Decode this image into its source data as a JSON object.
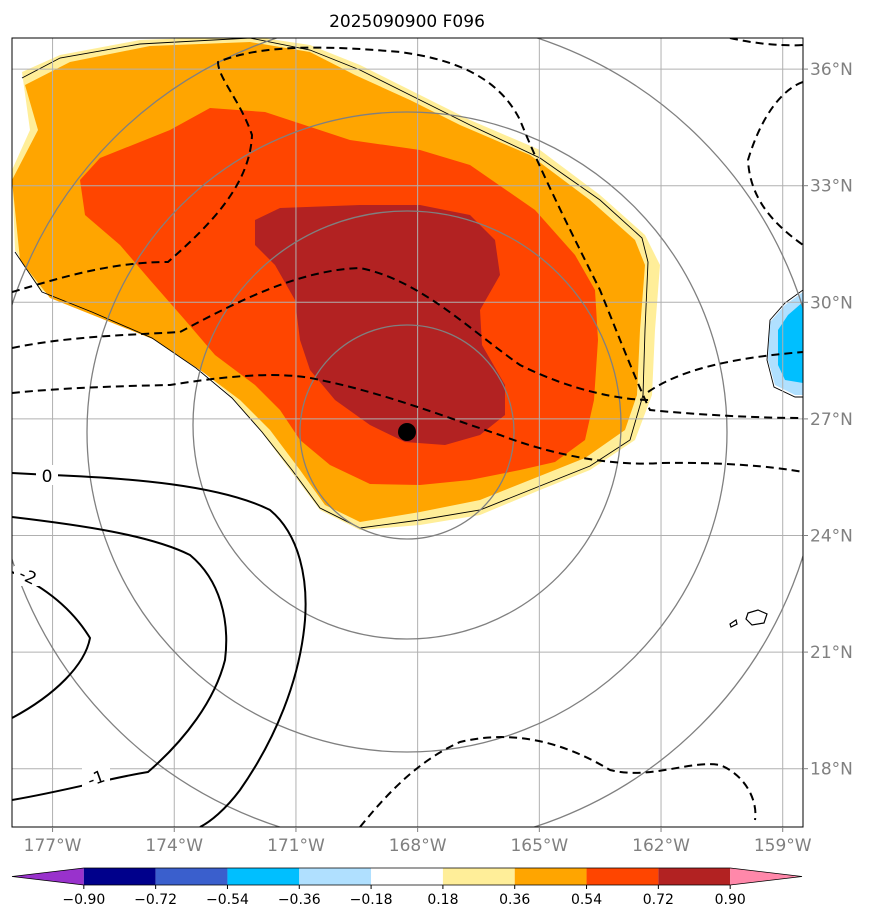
{
  "title": "2025090900 F096",
  "map": {
    "lon_range": [
      -178,
      -158.5
    ],
    "lat_range": [
      16.5,
      36.8
    ],
    "lon_ticks": [
      {
        "value": -177,
        "label": "177°W"
      },
      {
        "value": -174,
        "label": "174°W"
      },
      {
        "value": -171,
        "label": "171°W"
      },
      {
        "value": -168,
        "label": "168°W"
      },
      {
        "value": -165,
        "label": "165°W"
      },
      {
        "value": -162,
        "label": "162°W"
      },
      {
        "value": -159,
        "label": "159°W"
      }
    ],
    "lat_ticks": [
      {
        "value": 36,
        "label": "36°N"
      },
      {
        "value": 33,
        "label": "33°N"
      },
      {
        "value": 30,
        "label": "30°N"
      },
      {
        "value": 27,
        "label": "27°N"
      },
      {
        "value": 24,
        "label": "24°N"
      },
      {
        "value": 21,
        "label": "21°N"
      },
      {
        "value": 18,
        "label": "18°N"
      }
    ],
    "center_marker": {
      "lon": -168.4,
      "lat": 26.7
    },
    "contour_labels": [
      "0",
      "-2",
      "-1"
    ],
    "range_rings": 4,
    "colors": {
      "grid": "#b0b0b0",
      "ring": "#808080",
      "contour": "#000000",
      "level_0_18": "#ffee99",
      "level_0_36": "#ffa500",
      "level_0_54": "#ff4500",
      "level_0_72": "#b22222",
      "neg_0_36": "#00bfff",
      "neg_0_18": "#b0e0ff"
    }
  },
  "colorbar": {
    "ticks": [
      "−0.90",
      "−0.72",
      "−0.54",
      "−0.36",
      "−0.18",
      "0.18",
      "0.36",
      "0.54",
      "0.72",
      "0.90"
    ],
    "colors": [
      "#9932cc",
      "#00008b",
      "#3a5fcd",
      "#00bfff",
      "#b0e0ff",
      "#ffffff",
      "#ffee99",
      "#ffa500",
      "#ff4500",
      "#b22222",
      "#ff88aa"
    ]
  }
}
